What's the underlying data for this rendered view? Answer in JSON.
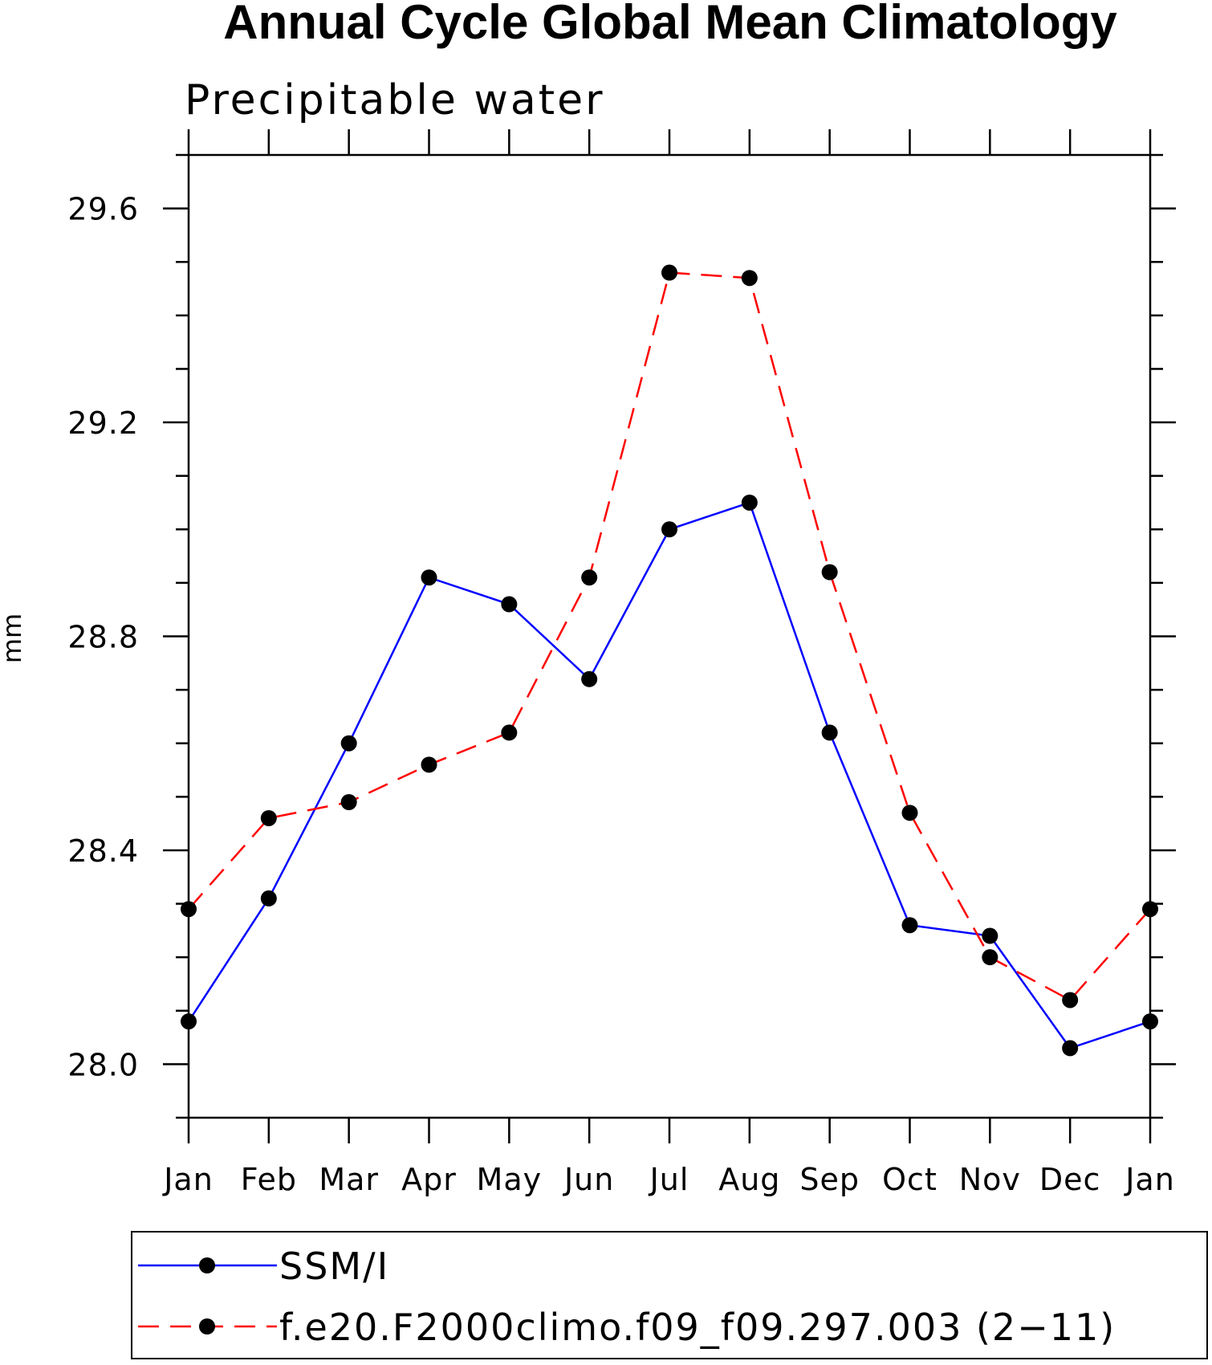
{
  "chart_data": {
    "type": "line",
    "title": "Annual Cycle Global Mean Climatology",
    "subtitle": "Precipitable water",
    "xlabel": "",
    "ylabel": "mm",
    "categories": [
      "Jan",
      "Feb",
      "Mar",
      "Apr",
      "May",
      "Jun",
      "Jul",
      "Aug",
      "Sep",
      "Oct",
      "Nov",
      "Dec",
      "Jan"
    ],
    "ylim": [
      27.9,
      29.7
    ],
    "yticks": [
      "28.0",
      "28.4",
      "28.8",
      "29.2",
      "29.6"
    ],
    "grid": false,
    "legend_position": "bottom",
    "series": [
      {
        "name": "SSM/I",
        "color": "#0000ff",
        "dash": "solid",
        "marker": "filled-circle",
        "values": [
          28.08,
          28.31,
          28.6,
          28.91,
          28.86,
          28.72,
          29.0,
          29.05,
          28.62,
          28.26,
          28.24,
          28.03,
          28.08
        ]
      },
      {
        "name": "f.e20.F2000climo.f09_f09.297.003 (2−11)",
        "color": "#ff0000",
        "dash": "dashed",
        "marker": "filled-circle",
        "values": [
          28.29,
          28.46,
          28.49,
          28.56,
          28.62,
          28.91,
          29.48,
          29.47,
          28.92,
          28.47,
          28.2,
          28.12,
          28.29
        ]
      }
    ]
  }
}
